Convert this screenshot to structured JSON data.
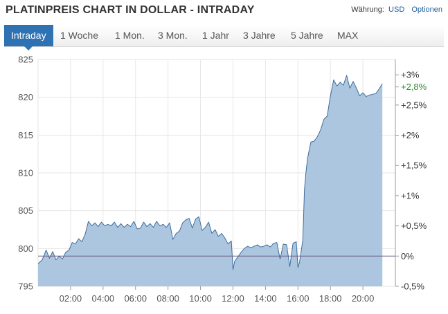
{
  "header": {
    "title": "PLATINPREIS CHART IN DOLLAR - INTRADAY",
    "currency_label": "Währung:",
    "currency_value": "USD",
    "options_label": "Optionen"
  },
  "tabs": [
    {
      "label": "Intraday",
      "active": true
    },
    {
      "label": "1 Woche",
      "active": false
    },
    {
      "label": "1 Mon.",
      "active": false
    },
    {
      "label": "3 Mon.",
      "active": false
    },
    {
      "label": "1 Jahr",
      "active": false
    },
    {
      "label": "3 Jahre",
      "active": false
    },
    {
      "label": "5 Jahre",
      "active": false
    },
    {
      "label": "MAX",
      "active": false
    }
  ],
  "colors": {
    "accent": "#2f72b3",
    "area_fill": "#a9c3de",
    "line": "#3d6d9e",
    "reference_line": "#6a5a86",
    "positive_label": "#2e8b2e"
  },
  "chart_data": {
    "type": "area",
    "title": "PLATINPREIS CHART IN DOLLAR - INTRADAY",
    "x_unit": "hour",
    "x_range": [
      0,
      22
    ],
    "y_range": [
      795,
      825
    ],
    "y_ticks": [
      825,
      820,
      815,
      810,
      805,
      800,
      795
    ],
    "x_ticks": [
      {
        "x": 2,
        "label": "02:00"
      },
      {
        "x": 4,
        "label": "04:00"
      },
      {
        "x": 6,
        "label": "06:00"
      },
      {
        "x": 8,
        "label": "08:00"
      },
      {
        "x": 10,
        "label": "10:00"
      },
      {
        "x": 12,
        "label": "12:00"
      },
      {
        "x": 14,
        "label": "14:00"
      },
      {
        "x": 16,
        "label": "16:00"
      },
      {
        "x": 18,
        "label": "18:00"
      },
      {
        "x": 20,
        "label": "20:00"
      }
    ],
    "reference_value": 799.0,
    "right_axis": [
      {
        "value": "+3%",
        "color": "#333333"
      },
      {
        "value": "+2,8%",
        "color": "#2e8b2e"
      },
      {
        "value": "+2,5%",
        "color": "#333333"
      },
      {
        "value": "+2%",
        "color": "#333333"
      },
      {
        "value": "+1,5%",
        "color": "#333333"
      },
      {
        "value": "+1%",
        "color": "#333333"
      },
      {
        "value": "+0,5%",
        "color": "#333333"
      },
      {
        "value": "0%",
        "color": "#333333"
      },
      {
        "value": "-0,5%",
        "color": "#333333"
      }
    ],
    "right_axis_pct": [
      3,
      2.8,
      2.5,
      2,
      1.5,
      1,
      0.5,
      0,
      -0.5
    ],
    "grid": true,
    "series": [
      {
        "x": [
          0.0,
          0.25,
          0.5,
          0.7,
          0.9,
          1.1,
          1.3,
          1.5,
          1.7,
          1.9,
          2.1,
          2.3,
          2.5,
          2.7,
          2.9,
          3.1,
          3.3,
          3.5,
          3.7,
          3.9,
          4.1,
          4.3,
          4.5,
          4.7,
          4.9,
          5.1,
          5.3,
          5.5,
          5.7,
          5.9,
          6.1,
          6.3,
          6.5,
          6.7,
          6.9,
          7.1,
          7.3,
          7.5,
          7.7,
          7.9,
          8.1,
          8.3,
          8.5,
          8.7,
          8.9,
          9.1,
          9.3,
          9.5,
          9.7,
          9.9,
          10.1,
          10.3,
          10.5,
          10.7,
          10.9,
          11.1,
          11.3,
          11.5,
          11.7,
          11.9,
          12.0,
          12.1,
          12.3,
          12.5,
          12.7,
          12.9,
          13.1,
          13.3,
          13.5,
          13.7,
          13.9,
          14.1,
          14.3,
          14.5,
          14.7,
          14.9,
          15.1,
          15.3,
          15.5,
          15.7,
          15.9,
          16.0,
          16.1,
          16.3,
          16.4,
          16.5,
          16.6,
          16.8,
          17.0,
          17.2,
          17.4,
          17.6,
          17.8,
          18.0,
          18.2,
          18.4,
          18.6,
          18.8,
          19.0,
          19.2,
          19.4,
          19.6,
          19.8,
          20.0,
          20.2,
          20.4,
          20.6,
          20.8,
          21.0,
          21.2
        ],
        "values": [
          798.0,
          798.5,
          799.8,
          798.7,
          799.6,
          798.5,
          799.0,
          798.6,
          799.5,
          799.8,
          800.8,
          800.6,
          801.3,
          800.9,
          801.9,
          803.6,
          803.0,
          803.4,
          802.9,
          803.5,
          803.0,
          803.2,
          803.0,
          803.5,
          802.8,
          803.3,
          802.8,
          803.2,
          802.9,
          803.6,
          802.6,
          802.7,
          803.5,
          802.9,
          803.3,
          802.8,
          803.6,
          803.0,
          803.2,
          802.8,
          803.4,
          801.2,
          802.0,
          802.3,
          803.4,
          803.8,
          804.0,
          802.7,
          803.9,
          804.2,
          802.4,
          802.8,
          803.5,
          802.0,
          802.5,
          801.6,
          802.0,
          801.4,
          800.6,
          801.0,
          797.2,
          798.3,
          798.9,
          799.5,
          800.0,
          800.3,
          800.1,
          800.3,
          800.5,
          800.2,
          800.3,
          800.5,
          800.2,
          800.7,
          800.8,
          798.6,
          800.6,
          800.5,
          797.6,
          800.7,
          800.9,
          797.5,
          798.2,
          801.1,
          807.8,
          810.2,
          812.0,
          814.1,
          814.2,
          814.8,
          815.7,
          817.1,
          817.5,
          820.2,
          822.3,
          821.5,
          822.0,
          821.6,
          822.9,
          821.2,
          822.1,
          821.2,
          820.2,
          820.6,
          820.1,
          820.3,
          820.4,
          820.5,
          821.1,
          821.8
        ]
      }
    ]
  }
}
